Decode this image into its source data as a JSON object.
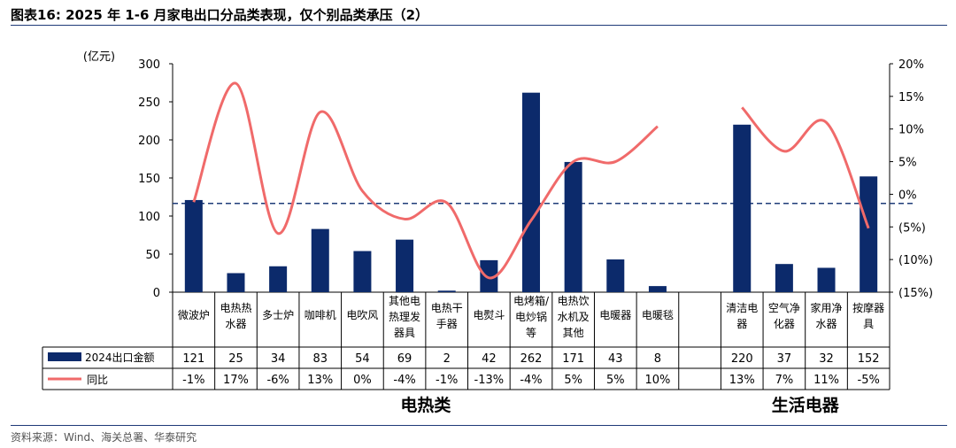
{
  "title": "图表16:  2025 年 1-6 月家电出口分品类表现，仅个别品类承压（2）",
  "source": "资料来源：Wind、海关总署、华泰研究",
  "colors": {
    "bar": "#0c2a6b",
    "line": "#f06a6a",
    "ref": "#1f3c78",
    "frame": "#000000"
  },
  "chart_data": {
    "type": "bar",
    "y_unit": "(亿元)",
    "ylim": [
      0,
      300
    ],
    "yticks": [
      "0",
      "50",
      "100",
      "150",
      "200",
      "250",
      "300"
    ],
    "y2lim": [
      -0.15,
      0.2
    ],
    "y2ticks": [
      "(15%)",
      "(10%)",
      "(5%)",
      "0%",
      "5%",
      "10%",
      "15%",
      "20%"
    ],
    "reference_line": -0.014,
    "categories": [
      [
        "微波炉"
      ],
      [
        "电热热",
        "水器"
      ],
      [
        "多士炉"
      ],
      [
        "咖啡机"
      ],
      [
        "电吹风"
      ],
      [
        "其他电",
        "热理发",
        "器具"
      ],
      [
        "电热干",
        "手器"
      ],
      [
        "电熨斗"
      ],
      [
        "电烤箱/",
        "电炒锅",
        "等"
      ],
      [
        "电热饮",
        "水机及",
        "其他"
      ],
      [
        "电暖器"
      ],
      [
        "电暖毯"
      ],
      [],
      [
        "清洁电",
        "器"
      ],
      [
        "空气净",
        "化器"
      ],
      [
        "家用净",
        "水器"
      ],
      [
        "按摩器",
        "具"
      ]
    ],
    "series": [
      {
        "name": "2024出口金额",
        "type": "bar",
        "values": [
          121,
          25,
          34,
          83,
          54,
          69,
          2,
          42,
          262,
          171,
          43,
          8,
          null,
          220,
          37,
          32,
          152
        ],
        "labels": [
          "121",
          "25",
          "34",
          "83",
          "54",
          "69",
          "2",
          "42",
          "262",
          "171",
          "43",
          "8",
          "",
          "220",
          "37",
          "32",
          "152"
        ]
      },
      {
        "name": "同比",
        "type": "line",
        "values": [
          -0.012,
          0.17,
          -0.06,
          0.126,
          0.005,
          -0.038,
          -0.013,
          -0.128,
          -0.04,
          0.05,
          0.05,
          0.104,
          null,
          0.133,
          0.066,
          0.11,
          -0.052
        ],
        "labels": [
          "-1%",
          "17%",
          "-6%",
          "13%",
          "0%",
          "-4%",
          "-1%",
          "-13%",
          "-4%",
          "5%",
          "5%",
          "10%",
          "",
          "13%",
          "7%",
          "11%",
          "-5%"
        ]
      }
    ],
    "groups": [
      {
        "label": "电热类",
        "from": 0,
        "to": 11
      },
      {
        "label": "生活电器",
        "from": 13,
        "to": 16
      }
    ]
  }
}
